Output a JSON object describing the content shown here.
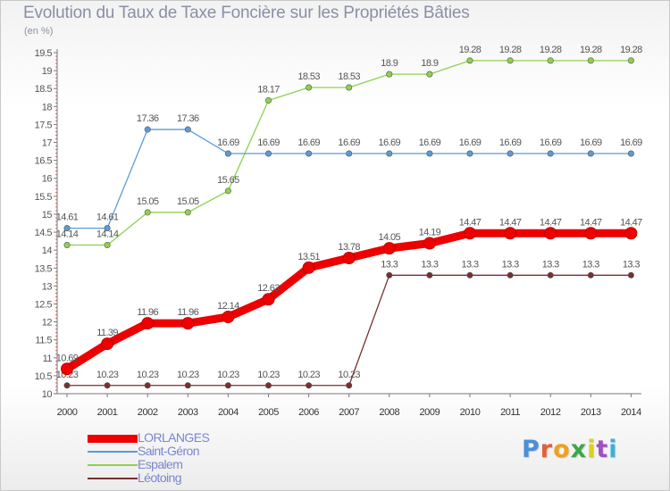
{
  "title": "Evolution du Taux de Taxe Foncière sur les Propriétés Bâties",
  "unit_label": "(en %)",
  "logo": {
    "text": "Proxiti",
    "colors": [
      "#4a90d9",
      "#e0603a",
      "#f0a020",
      "#3aa848",
      "#d9d020",
      "#a050c0",
      "#3ab0d8"
    ]
  },
  "chart_data": {
    "type": "line",
    "title": "Evolution du Taux de Taxe Foncière sur les Propriétés Bâties",
    "ylabel": "(en %)",
    "xlabel": "",
    "ylim": [
      10,
      19.5
    ],
    "yticks": [
      "10",
      "10.5",
      "11",
      "11.5",
      "12",
      "12.5",
      "13",
      "13.5",
      "14",
      "14.5",
      "15",
      "15.5",
      "16",
      "16.5",
      "17",
      "17.5",
      "18",
      "18.5",
      "19",
      "19.5"
    ],
    "x": [
      "2000",
      "2001",
      "2002",
      "2003",
      "2004",
      "2005",
      "2006",
      "2007",
      "2008",
      "2009",
      "2010",
      "2011",
      "2012",
      "2013",
      "2014"
    ],
    "grid": false,
    "legend_position": "bottom-left",
    "series": [
      {
        "name": "LORLANGES",
        "color": "#ee0000",
        "values": [
          10.69,
          11.39,
          11.96,
          11.96,
          12.14,
          12.63,
          13.51,
          13.78,
          14.05,
          14.19,
          14.47,
          14.47,
          14.47,
          14.47,
          14.47
        ],
        "labels": [
          "10.69",
          "11.39",
          "11.96",
          "11.96",
          "12.14",
          "12.63",
          "13.51",
          "13.78",
          "14.05",
          "14.19",
          "14.47",
          "14.47",
          "14.47",
          "14.47",
          "14.47"
        ]
      },
      {
        "name": "Saint-Géron",
        "color": "#5b9bd5",
        "values": [
          14.61,
          14.61,
          17.36,
          17.36,
          16.69,
          16.69,
          16.69,
          16.69,
          16.69,
          16.69,
          16.69,
          16.69,
          16.69,
          16.69,
          16.69
        ],
        "labels": [
          "14.61",
          "14.61",
          "17.36",
          "17.36",
          "16.69",
          "16.69",
          "16.69",
          "16.69",
          "16.69",
          "16.69",
          "16.69",
          "16.69",
          "16.69",
          "16.69",
          "16.69"
        ]
      },
      {
        "name": "Espalem",
        "color": "#8fd14f",
        "values": [
          14.14,
          14.14,
          15.05,
          15.05,
          15.65,
          18.17,
          18.53,
          18.53,
          18.9,
          18.9,
          19.28,
          19.28,
          19.28,
          19.28,
          19.28
        ],
        "labels": [
          "14.14",
          "14.14",
          "15.05",
          "15.05",
          "15.65",
          "18.17",
          "18.53",
          "18.53",
          "18.9",
          "18.9",
          "19.28",
          "19.28",
          "19.28",
          "19.28",
          "19.28"
        ]
      },
      {
        "name": "Léotoing",
        "color": "#7a2e2e",
        "values": [
          10.23,
          10.23,
          10.23,
          10.23,
          10.23,
          10.23,
          10.23,
          10.23,
          13.3,
          13.3,
          13.3,
          13.3,
          13.3,
          13.3,
          13.3
        ],
        "labels": [
          "10.23",
          "10.23",
          "10.23",
          "10.23",
          "10.23",
          "10.23",
          "10.23",
          "10.23",
          "13.3",
          "13.3",
          "13.3",
          "13.3",
          "13.3",
          "13.3",
          "13.3"
        ]
      }
    ]
  }
}
